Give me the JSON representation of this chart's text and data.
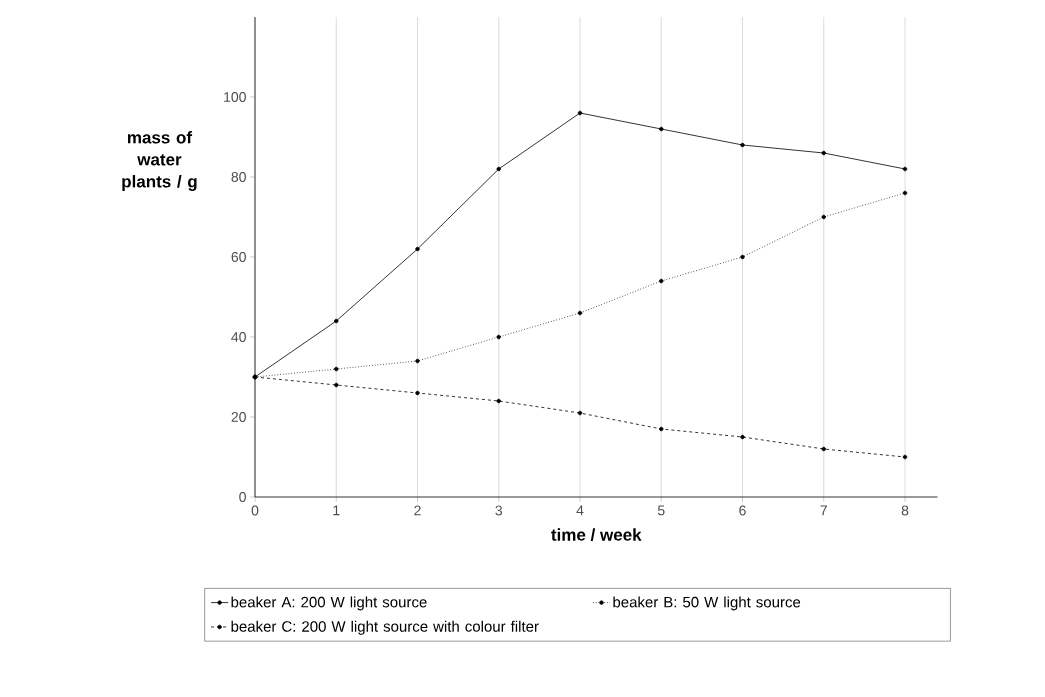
{
  "chart_data": {
    "type": "line",
    "xlabel": "time / week",
    "ylabel": "mass of water plants / g",
    "x": [
      0,
      1,
      2,
      3,
      4,
      5,
      6,
      7,
      8
    ],
    "series": [
      {
        "name": "beaker A: 200 W light source",
        "color": "#000000",
        "line_style": "solid",
        "values": [
          30,
          44,
          62,
          82,
          96,
          92,
          88,
          86,
          82
        ]
      },
      {
        "name": "beaker B: 50 W light source",
        "color": "#000000",
        "line_style": "dotted",
        "values": [
          30,
          32,
          34,
          40,
          46,
          54,
          60,
          70,
          76
        ]
      },
      {
        "name": "beaker C: 200 W light source with colour filter",
        "color": "#000000",
        "line_style": "dashed",
        "values": [
          30,
          28,
          26,
          24,
          21,
          17,
          15,
          12,
          10
        ]
      }
    ],
    "xlim": [
      0,
      8.4
    ],
    "ylim": [
      0,
      120
    ],
    "xticks": [
      0,
      1,
      2,
      3,
      4,
      5,
      6,
      7,
      8
    ],
    "yticks": [
      0,
      20,
      40,
      60,
      80,
      100
    ],
    "grid": "x",
    "legend": "bottom",
    "marker": "circle"
  }
}
